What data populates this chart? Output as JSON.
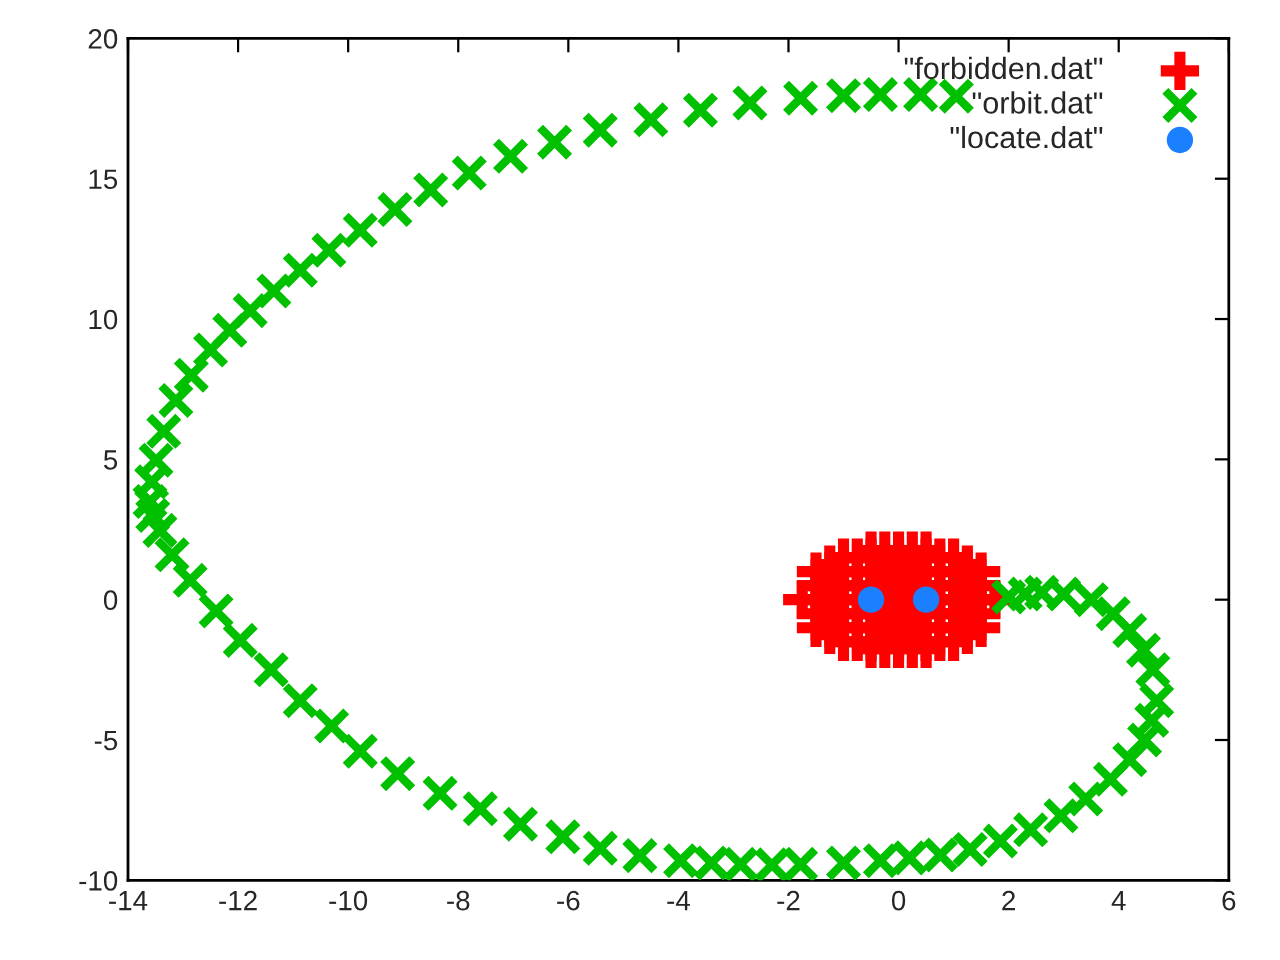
{
  "chart_data": {
    "type": "scatter",
    "xlim": [
      -14,
      6
    ],
    "xticks": [
      -14,
      -12,
      -10,
      -8,
      -6,
      -4,
      -2,
      0,
      2,
      4,
      6
    ],
    "ylim": [
      -10,
      20
    ],
    "yticks": [
      -10,
      -5,
      0,
      5,
      10,
      15,
      20
    ],
    "legend": "top right",
    "series": [
      {
        "name": "\"forbidden.dat\"",
        "color": "#ff0000",
        "marker": "cross",
        "x": [
          -1.75,
          -1.5,
          -1.5,
          -1.5,
          -1.5,
          -1.5,
          -1.25,
          -1.25,
          -1.25,
          -1.25,
          -1.25,
          -1.25,
          -1,
          -1,
          -1,
          -1,
          -1,
          -1,
          -1,
          -0.75,
          -0.75,
          -0.75,
          -0.75,
          -0.75,
          -0.75,
          -0.75,
          -0.5,
          -0.5,
          -0.5,
          -0.5,
          -0.5,
          -0.5,
          -0.5,
          -0.5,
          -0.25,
          -0.25,
          -0.25,
          -0.25,
          -0.25,
          -0.25,
          -0.25,
          -0.25,
          0,
          0,
          0,
          0,
          0,
          0,
          0,
          0,
          0,
          0.25,
          0.25,
          0.25,
          0.25,
          0.25,
          0.25,
          0.25,
          0.25,
          0.5,
          0.5,
          0.5,
          0.5,
          0.5,
          0.5,
          0.5,
          0.5,
          0.75,
          0.75,
          0.75,
          0.75,
          0.75,
          0.75,
          0.75,
          1,
          1,
          1,
          1,
          1,
          1,
          1,
          1.25,
          1.25,
          1.25,
          1.25,
          1.25,
          1.25,
          1.5,
          1.5,
          1.5,
          1.5,
          1.5,
          1.75
        ],
        "values": [
          0,
          -1,
          -0.5,
          0,
          0.5,
          1,
          -1.25,
          -0.75,
          -0.25,
          0.25,
          0.75,
          1.25,
          -1.5,
          -1,
          -0.5,
          0,
          0.5,
          1,
          1.5,
          -1.5,
          -1,
          -0.5,
          0,
          0.5,
          1,
          1.5,
          -1.75,
          -1.5,
          -1,
          -0.5,
          0.5,
          1,
          1.5,
          1.75,
          -1.75,
          -1.25,
          -0.75,
          -0.25,
          0.25,
          0.75,
          1.25,
          1.75,
          -1.75,
          -1.5,
          -1,
          -0.5,
          0,
          0.5,
          1,
          1.5,
          1.75,
          -1.75,
          -1.25,
          -0.75,
          -0.25,
          0.25,
          0.75,
          1.25,
          1.75,
          -1.75,
          -1.5,
          -1,
          -0.5,
          0.5,
          1,
          1.5,
          1.75,
          -1.5,
          -1,
          -0.5,
          0,
          0.5,
          1,
          1.5,
          -1.5,
          -1,
          -0.5,
          0,
          0.5,
          1,
          1.5,
          -1.25,
          -0.75,
          -0.25,
          0.25,
          0.75,
          1.25,
          -1,
          -0.5,
          0,
          0.5,
          1,
          0
        ]
      },
      {
        "name": "\"orbit.dat\"",
        "color": "#00c000",
        "marker": "cross",
        "x": [
          2.0,
          2.3,
          2.6,
          3.0,
          3.5,
          3.9,
          4.2,
          4.45,
          4.62,
          4.69,
          4.6,
          4.47,
          4.2,
          3.85,
          3.4,
          2.95,
          2.4,
          1.85,
          1.3,
          0.76,
          0.2,
          -0.33,
          -1.0,
          -1.78,
          -2.3,
          -2.87,
          -3.4,
          -3.96,
          -4.7,
          -5.42,
          -6.1,
          -6.87,
          -7.6,
          -8.33,
          -9.1,
          -9.78,
          -10.3,
          -10.87,
          -11.4,
          -11.96,
          -12.4,
          -12.87,
          -13.2,
          -13.42,
          -13.55,
          -13.6,
          -13.57,
          -13.49,
          -13.35,
          -13.13,
          -12.85,
          -12.5,
          -12.15,
          -11.78,
          -11.35,
          -10.87,
          -10.35,
          -9.78,
          -9.15,
          -8.5,
          -7.8,
          -7.05,
          -6.25,
          -5.42,
          -4.5,
          -3.6,
          -2.7,
          -1.78,
          -1.0,
          -0.33,
          0.4,
          1.05
        ],
        "values": [
          0.1,
          0.2,
          0.26,
          0.2,
          0.0,
          -0.5,
          -1.1,
          -1.8,
          -2.5,
          -3.6,
          -4.3,
          -5.0,
          -5.7,
          -6.4,
          -7.1,
          -7.7,
          -8.2,
          -8.6,
          -8.9,
          -9.1,
          -9.2,
          -9.3,
          -9.38,
          -9.43,
          -9.45,
          -9.43,
          -9.38,
          -9.3,
          -9.12,
          -8.86,
          -8.45,
          -8.0,
          -7.45,
          -6.9,
          -6.2,
          -5.4,
          -4.5,
          -3.6,
          -2.5,
          -1.45,
          -0.4,
          0.69,
          1.6,
          2.47,
          3.0,
          3.5,
          4.2,
          4.97,
          6.0,
          7.1,
          8.0,
          8.9,
          9.6,
          10.3,
          11.0,
          11.74,
          12.45,
          13.16,
          13.9,
          14.6,
          15.2,
          15.8,
          16.3,
          16.73,
          17.1,
          17.44,
          17.7,
          17.87,
          17.96,
          18.0,
          18.0,
          17.94
        ]
      },
      {
        "name": "\"locate.dat\"",
        "color": "#1a80ff",
        "marker": "circle",
        "x": [
          -0.5,
          0.5
        ],
        "values": [
          0,
          0
        ]
      }
    ]
  }
}
